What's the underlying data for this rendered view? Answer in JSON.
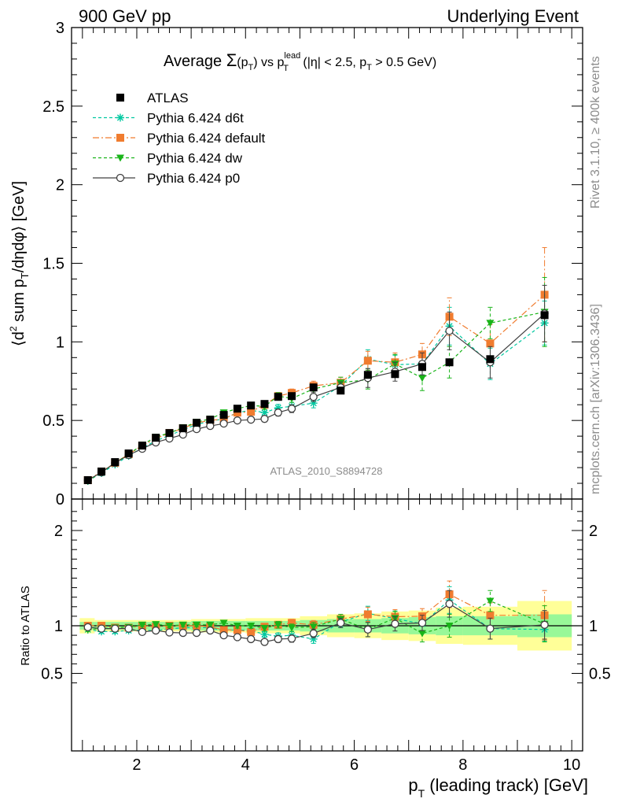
{
  "header": {
    "left_label": "900 GeV pp",
    "right_label": "Underlying Event"
  },
  "side_labels": {
    "rivet": "Rivet 3.1.10, ≥ 400k events",
    "mcplots": "mcplots.cern.ch [arXiv:1306.3436]"
  },
  "main_title": {
    "prefix": "Average ",
    "sigma": "Σ",
    "arg": "(p",
    "arg_sub": "T",
    "arg_close": ")",
    "vs": " vs p",
    "vs_sub": "T",
    "vs_sup": "lead",
    "cuts_a": " (|η| < 2.5, p",
    "cuts_sub": "T",
    "cuts_b": " > 0.5 GeV)"
  },
  "analysis_id": "ATLAS_2010_S8894728",
  "colors": {
    "atlas": "#000000",
    "d6t": "#00c8a0",
    "default": "#f07c2f",
    "dw": "#19b419",
    "p0": "#404040",
    "band_inner": "#98f898",
    "band_outer": "#ffff98"
  },
  "chart_data": [
    {
      "type": "scatter",
      "panel": "main",
      "ylabel": {
        "open": "⟨d",
        "sup2": "2",
        "mid": " sum p",
        "sub": "T",
        "rest": "/dηdφ⟩ [GeV]"
      },
      "xlim": [
        0.8,
        10.2
      ],
      "ylim": [
        0,
        3
      ],
      "yticks": [
        0,
        0.5,
        1,
        1.5,
        2,
        2.5,
        3
      ],
      "ytick_labels": [
        "0",
        "0.5",
        "1",
        "1.5",
        "2",
        "2.5",
        "3"
      ],
      "legend_position": "top-left",
      "series": [
        {
          "name": "ATLAS",
          "color": "#000000",
          "marker": "square",
          "x": [
            1.1,
            1.35,
            1.6,
            1.85,
            2.1,
            2.35,
            2.6,
            2.85,
            3.1,
            3.35,
            3.6,
            3.85,
            4.1,
            4.35,
            4.6,
            4.85,
            5.25,
            5.75,
            6.25,
            6.75,
            7.25,
            7.75,
            8.5,
            9.5
          ],
          "y": [
            0.12,
            0.175,
            0.235,
            0.29,
            0.34,
            0.39,
            0.42,
            0.45,
            0.485,
            0.505,
            0.535,
            0.575,
            0.595,
            0.605,
            0.65,
            0.655,
            0.71,
            0.69,
            0.79,
            0.795,
            0.84,
            0.87,
            0.89,
            1.17
          ]
        },
        {
          "name": "Pythia 6.424 d6t",
          "color": "#00c8a0",
          "marker": "star",
          "dash": "4,3",
          "x": [
            1.1,
            1.35,
            1.6,
            1.85,
            2.1,
            2.35,
            2.6,
            2.85,
            3.1,
            3.35,
            3.6,
            3.85,
            4.1,
            4.35,
            4.6,
            4.85,
            5.25,
            5.75,
            6.25,
            6.75,
            7.25,
            7.75,
            8.5,
            9.5
          ],
          "y": [
            0.115,
            0.165,
            0.22,
            0.275,
            0.325,
            0.37,
            0.405,
            0.44,
            0.475,
            0.495,
            0.51,
            0.55,
            0.565,
            0.55,
            0.58,
            0.59,
            0.61,
            0.72,
            0.89,
            0.855,
            0.86,
            1.1,
            0.86,
            1.12
          ],
          "err": [
            0.005,
            0.005,
            0.005,
            0.006,
            0.006,
            0.007,
            0.008,
            0.008,
            0.009,
            0.01,
            0.012,
            0.015,
            0.017,
            0.02,
            0.022,
            0.025,
            0.03,
            0.035,
            0.06,
            0.06,
            0.07,
            0.12,
            0.1,
            0.14
          ]
        },
        {
          "name": "Pythia 6.424 default",
          "color": "#f07c2f",
          "marker": "square",
          "dash": "8,3,2,3",
          "x": [
            1.1,
            1.35,
            1.6,
            1.85,
            2.1,
            2.35,
            2.6,
            2.85,
            3.1,
            3.35,
            3.6,
            3.85,
            4.1,
            4.35,
            4.6,
            4.85,
            5.25,
            5.75,
            6.25,
            6.75,
            7.25,
            7.75,
            8.5,
            9.5
          ],
          "y": [
            0.12,
            0.175,
            0.23,
            0.285,
            0.34,
            0.385,
            0.42,
            0.45,
            0.485,
            0.5,
            0.51,
            0.55,
            0.555,
            0.6,
            0.655,
            0.675,
            0.72,
            0.74,
            0.88,
            0.87,
            0.92,
            1.16,
            0.99,
            1.3
          ],
          "err": [
            0.005,
            0.005,
            0.005,
            0.006,
            0.006,
            0.007,
            0.008,
            0.008,
            0.009,
            0.01,
            0.012,
            0.015,
            0.017,
            0.02,
            0.022,
            0.025,
            0.03,
            0.035,
            0.06,
            0.06,
            0.07,
            0.12,
            0.12,
            0.3
          ]
        },
        {
          "name": "Pythia 6.424 dw",
          "color": "#19b419",
          "marker": "triangle-down",
          "dash": "4,3",
          "x": [
            1.1,
            1.35,
            1.6,
            1.85,
            2.1,
            2.35,
            2.6,
            2.85,
            3.1,
            3.35,
            3.6,
            3.85,
            4.1,
            4.35,
            4.6,
            4.85,
            5.25,
            5.75,
            6.25,
            6.75,
            7.25,
            7.75,
            8.5,
            9.5
          ],
          "y": [
            0.115,
            0.17,
            0.23,
            0.285,
            0.345,
            0.395,
            0.42,
            0.455,
            0.49,
            0.51,
            0.55,
            0.575,
            0.595,
            0.59,
            0.655,
            0.64,
            0.7,
            0.74,
            0.76,
            0.86,
            0.77,
            0.87,
            1.12,
            1.19
          ],
          "err": [
            0.005,
            0.005,
            0.005,
            0.006,
            0.006,
            0.007,
            0.008,
            0.008,
            0.009,
            0.01,
            0.012,
            0.015,
            0.017,
            0.02,
            0.022,
            0.025,
            0.03,
            0.035,
            0.06,
            0.06,
            0.08,
            0.1,
            0.1,
            0.22
          ]
        },
        {
          "name": "Pythia 6.424 p0",
          "color": "#404040",
          "marker": "circle-open",
          "dash": "",
          "x": [
            1.1,
            1.35,
            1.6,
            1.85,
            2.1,
            2.35,
            2.6,
            2.85,
            3.1,
            3.35,
            3.6,
            3.85,
            4.1,
            4.35,
            4.6,
            4.85,
            5.25,
            5.75,
            6.25,
            6.75,
            7.25,
            7.75,
            8.5,
            9.5
          ],
          "y": [
            0.12,
            0.17,
            0.23,
            0.28,
            0.32,
            0.36,
            0.385,
            0.41,
            0.445,
            0.465,
            0.48,
            0.5,
            0.505,
            0.51,
            0.55,
            0.575,
            0.65,
            0.71,
            0.77,
            0.81,
            0.86,
            1.07,
            0.87,
            1.18
          ],
          "err": [
            0.005,
            0.005,
            0.005,
            0.006,
            0.006,
            0.007,
            0.008,
            0.008,
            0.009,
            0.01,
            0.012,
            0.015,
            0.017,
            0.02,
            0.022,
            0.025,
            0.03,
            0.035,
            0.06,
            0.06,
            0.07,
            0.12,
            0.1,
            0.18
          ]
        }
      ]
    },
    {
      "type": "scatter",
      "panel": "ratio",
      "ylabel": "Ratio to ATLAS",
      "xlabel": {
        "main": "p",
        "sub": "T",
        "rest": " (leading track) [GeV]"
      },
      "xlim": [
        0.8,
        10.2
      ],
      "xticks": [
        2,
        4,
        6,
        8,
        10
      ],
      "xtick_labels": [
        "2",
        "4",
        "6",
        "8",
        "10"
      ],
      "ylim": [
        0.35,
        2.3
      ],
      "yticks": [
        0.5,
        1,
        2
      ],
      "ytick_labels": [
        "0.5",
        "1",
        "2"
      ],
      "band_bins": [
        {
          "lo": 0.95,
          "hi": 1.225,
          "inner": 0.04,
          "outer": 0.08
        },
        {
          "lo": 1.225,
          "hi": 2.0,
          "inner": 0.04,
          "outer": 0.06
        },
        {
          "lo": 2.0,
          "hi": 3.0,
          "inner": 0.04,
          "outer": 0.06
        },
        {
          "lo": 3.0,
          "hi": 4.0,
          "inner": 0.05,
          "outer": 0.07
        },
        {
          "lo": 4.0,
          "hi": 5.0,
          "inner": 0.05,
          "outer": 0.08
        },
        {
          "lo": 5.0,
          "hi": 5.5,
          "inner": 0.06,
          "outer": 0.1
        },
        {
          "lo": 5.5,
          "hi": 6.0,
          "inner": 0.07,
          "outer": 0.12
        },
        {
          "lo": 6.0,
          "hi": 6.5,
          "inner": 0.07,
          "outer": 0.13
        },
        {
          "lo": 6.5,
          "hi": 7.0,
          "inner": 0.08,
          "outer": 0.15
        },
        {
          "lo": 7.0,
          "hi": 7.5,
          "inner": 0.09,
          "outer": 0.16
        },
        {
          "lo": 7.5,
          "hi": 8.0,
          "inner": 0.1,
          "outer": 0.19
        },
        {
          "lo": 8.0,
          "hi": 9.0,
          "inner": 0.1,
          "outer": 0.2
        },
        {
          "lo": 9.0,
          "hi": 10.0,
          "inner": 0.12,
          "outer": 0.26
        }
      ],
      "series": [
        {
          "name": "Pythia 6.424 d6t",
          "color": "#00c8a0",
          "marker": "star",
          "dash": "4,3",
          "x": [
            1.1,
            1.35,
            1.6,
            1.85,
            2.1,
            2.35,
            2.6,
            2.85,
            3.1,
            3.35,
            3.6,
            3.85,
            4.1,
            4.35,
            4.6,
            4.85,
            5.25,
            5.75,
            6.25,
            6.75,
            7.25,
            7.75,
            8.5,
            9.5
          ],
          "y": [
            0.96,
            0.94,
            0.94,
            0.95,
            0.955,
            0.95,
            0.965,
            0.98,
            0.98,
            0.98,
            0.95,
            0.955,
            0.95,
            0.91,
            0.89,
            0.9,
            0.86,
            1.04,
            1.13,
            1.075,
            1.02,
            1.27,
            0.97,
            0.96
          ],
          "err": [
            0.02,
            0.02,
            0.02,
            0.02,
            0.02,
            0.02,
            0.02,
            0.02,
            0.02,
            0.02,
            0.025,
            0.025,
            0.028,
            0.03,
            0.035,
            0.038,
            0.045,
            0.05,
            0.075,
            0.075,
            0.08,
            0.14,
            0.11,
            0.12
          ]
        },
        {
          "name": "Pythia 6.424 default",
          "color": "#f07c2f",
          "marker": "square",
          "dash": "8,3,2,3",
          "x": [
            1.1,
            1.35,
            1.6,
            1.85,
            2.1,
            2.35,
            2.6,
            2.85,
            3.1,
            3.35,
            3.6,
            3.85,
            4.1,
            4.35,
            4.6,
            4.85,
            5.25,
            5.75,
            6.25,
            6.75,
            7.25,
            7.75,
            8.5,
            9.5
          ],
          "y": [
            1.0,
            1.0,
            0.98,
            0.98,
            1.0,
            0.99,
            1.0,
            1.0,
            1.0,
            0.99,
            0.955,
            0.955,
            0.935,
            0.99,
            1.01,
            1.03,
            1.01,
            1.07,
            1.12,
            1.095,
            1.1,
            1.33,
            1.11,
            1.11
          ],
          "err": [
            0.02,
            0.02,
            0.02,
            0.02,
            0.02,
            0.02,
            0.02,
            0.02,
            0.02,
            0.02,
            0.025,
            0.025,
            0.028,
            0.03,
            0.035,
            0.038,
            0.045,
            0.05,
            0.075,
            0.075,
            0.08,
            0.14,
            0.13,
            0.26
          ]
        },
        {
          "name": "Pythia 6.424 dw",
          "color": "#19b419",
          "marker": "triangle-down",
          "dash": "4,3",
          "x": [
            1.1,
            1.35,
            1.6,
            1.85,
            2.1,
            2.35,
            2.6,
            2.85,
            3.1,
            3.35,
            3.6,
            3.85,
            4.1,
            4.35,
            4.6,
            4.85,
            5.25,
            5.75,
            6.25,
            6.75,
            7.25,
            7.75,
            8.5,
            9.5
          ],
          "y": [
            0.96,
            0.97,
            0.98,
            0.985,
            1.01,
            1.015,
            1.0,
            1.01,
            1.01,
            1.01,
            1.03,
            1.0,
            1.0,
            0.975,
            1.01,
            0.98,
            0.99,
            1.07,
            0.96,
            1.08,
            0.92,
            1.0,
            1.26,
            1.02
          ],
          "err": [
            0.02,
            0.02,
            0.02,
            0.02,
            0.02,
            0.02,
            0.02,
            0.02,
            0.02,
            0.02,
            0.025,
            0.025,
            0.028,
            0.03,
            0.035,
            0.038,
            0.045,
            0.05,
            0.075,
            0.075,
            0.09,
            0.12,
            0.11,
            0.19
          ]
        },
        {
          "name": "Pythia 6.424 p0",
          "color": "#404040",
          "marker": "circle-open",
          "dash": "",
          "x": [
            1.1,
            1.35,
            1.6,
            1.85,
            2.1,
            2.35,
            2.6,
            2.85,
            3.1,
            3.35,
            3.6,
            3.85,
            4.1,
            4.35,
            4.6,
            4.85,
            5.25,
            5.75,
            6.25,
            6.75,
            7.25,
            7.75,
            8.5,
            9.5
          ],
          "y": [
            0.985,
            0.97,
            0.97,
            0.97,
            0.935,
            0.95,
            0.93,
            0.925,
            0.925,
            0.95,
            0.9,
            0.88,
            0.86,
            0.83,
            0.86,
            0.865,
            0.92,
            1.03,
            0.96,
            1.02,
            1.03,
            1.23,
            0.97,
            1.01
          ],
          "err": [
            0.02,
            0.02,
            0.02,
            0.02,
            0.02,
            0.02,
            0.02,
            0.02,
            0.02,
            0.02,
            0.025,
            0.025,
            0.028,
            0.03,
            0.035,
            0.038,
            0.045,
            0.05,
            0.075,
            0.075,
            0.08,
            0.14,
            0.11,
            0.15
          ]
        }
      ]
    }
  ]
}
